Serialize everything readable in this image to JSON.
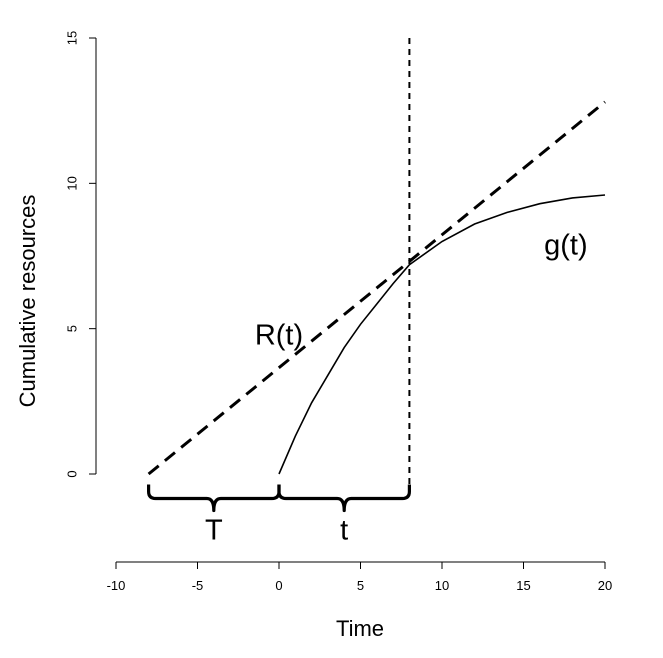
{
  "chart_data": {
    "type": "line",
    "title": "",
    "xlabel": "Time",
    "ylabel": "Cumulative resources",
    "xlim": [
      -10,
      20
    ],
    "ylim": [
      -3,
      15
    ],
    "x_ticks": [
      -10,
      -5,
      0,
      5,
      10,
      15,
      20
    ],
    "x_tick_labels": [
      "-10",
      "-5",
      "0",
      "5",
      "10",
      "15",
      "20"
    ],
    "y_ticks": [
      0,
      5,
      10,
      15
    ],
    "y_tick_labels": [
      "0",
      "5",
      "10",
      "15"
    ],
    "grid": false,
    "legend": "none",
    "series": [
      {
        "name": "g(t)",
        "style": "solid",
        "x": [
          0,
          1,
          2,
          3,
          4,
          5,
          6,
          7,
          8,
          10,
          12,
          14,
          16,
          18,
          20
        ],
        "y": [
          0.0,
          1.3,
          2.45,
          3.4,
          4.35,
          5.15,
          5.85,
          6.55,
          7.2,
          8.0,
          8.6,
          9.0,
          9.3,
          9.5,
          9.6
        ]
      },
      {
        "name": "R(t)",
        "style": "dashed",
        "x": [
          -8,
          20
        ],
        "y": [
          0.0,
          12.8
        ]
      }
    ],
    "vertical_lines": [
      {
        "x": 8,
        "style": "dashed"
      }
    ],
    "annotations": [
      {
        "text": "g(t)",
        "x": 17.6,
        "y": 7.9
      },
      {
        "text": "R(t)",
        "x": 0.0,
        "y": 4.8
      }
    ],
    "braces": [
      {
        "label": "T",
        "x_from": -8,
        "x_to": 0,
        "y": -0.5
      },
      {
        "label": "t",
        "x_from": 0,
        "x_to": 8,
        "y": -0.5
      }
    ]
  }
}
